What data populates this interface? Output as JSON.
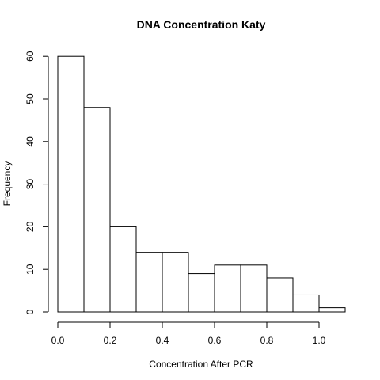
{
  "chart_data": {
    "type": "bar",
    "title": "DNA Concentration Katy",
    "xlabel": "Concentration After PCR",
    "ylabel": "Frequency",
    "bins": [
      {
        "x0": 0.0,
        "x1": 0.1,
        "count": 60
      },
      {
        "x0": 0.1,
        "x1": 0.2,
        "count": 48
      },
      {
        "x0": 0.2,
        "x1": 0.3,
        "count": 20
      },
      {
        "x0": 0.3,
        "x1": 0.4,
        "count": 14
      },
      {
        "x0": 0.4,
        "x1": 0.5,
        "count": 14
      },
      {
        "x0": 0.5,
        "x1": 0.6,
        "count": 9
      },
      {
        "x0": 0.6,
        "x1": 0.7,
        "count": 11
      },
      {
        "x0": 0.7,
        "x1": 0.8,
        "count": 11
      },
      {
        "x0": 0.8,
        "x1": 0.9,
        "count": 8
      },
      {
        "x0": 0.9,
        "x1": 1.0,
        "count": 4
      },
      {
        "x0": 1.0,
        "x1": 1.1,
        "count": 1
      }
    ],
    "xticks": [
      "0.0",
      "0.2",
      "0.4",
      "0.6",
      "0.8",
      "1.0"
    ],
    "yticks": [
      "0",
      "10",
      "20",
      "30",
      "40",
      "50",
      "60"
    ],
    "xlim": [
      0.0,
      1.1
    ],
    "ylim": [
      0,
      60
    ],
    "grid": false,
    "legend": "none"
  }
}
